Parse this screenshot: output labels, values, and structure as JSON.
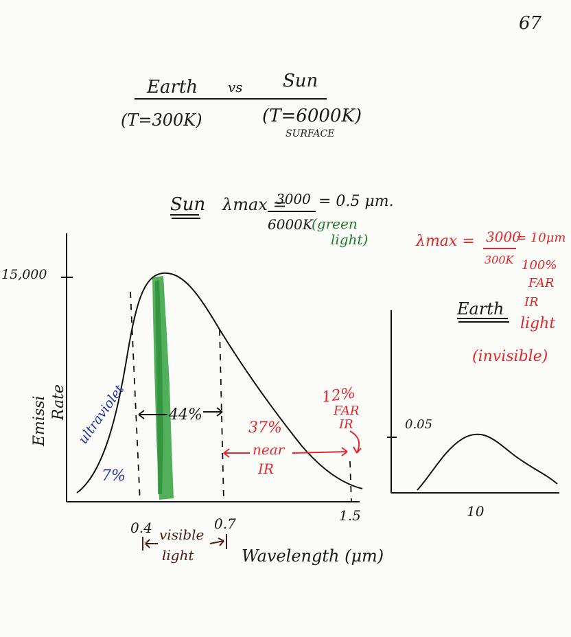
{
  "page_number": "67",
  "header": {
    "left_title": "Earth",
    "vs": "vs",
    "right_title": "Sun",
    "left_temp": "(T=300K)",
    "right_temp": "(T=6000K)",
    "right_note": "SURFACE"
  },
  "sun_formula": {
    "label": "Sun",
    "lhs": "λmax =",
    "numerator": "3000",
    "denominator": "6000K",
    "result": "= 0.5 μm.",
    "note_line1": "(green",
    "note_line2": "light)"
  },
  "earth_formula": {
    "lhs": "λmax =",
    "numerator": "3000",
    "denominator": "300K",
    "result": "= 10μm",
    "pct": "100%",
    "line1": "FAR",
    "line2": "IR",
    "line3": "light",
    "line4": "(invisible)"
  },
  "earth_label": "Earth",
  "sun_chart": {
    "y_tick_label": "15,000",
    "y_axis_label_1": "Emissi",
    "y_axis_label_2": "Rate",
    "x_ticks": [
      "0.4",
      "0.7",
      "1.5"
    ],
    "x_axis_label": "Wavelength (μm)",
    "visible_label_1": "visible",
    "visible_label_2": "light",
    "uv_label": "ultraviolet",
    "uv_pct": "7%",
    "visible_pct": "44%",
    "near_ir_pct": "37%",
    "near_ir_label_1": "near",
    "near_ir_label_2": "IR",
    "far_ir_pct": "12%",
    "far_ir_label_1": "FAR",
    "far_ir_label_2": "IR"
  },
  "earth_chart": {
    "y_tick_label": "0.05",
    "x_tick_label": "10"
  },
  "colors": {
    "ink": "#1a1a1a",
    "red": "#e3262b",
    "blue": "#2231a5",
    "green": "#1f7a2c",
    "green_band": "#3fa64a",
    "brown": "#4a1e14"
  }
}
